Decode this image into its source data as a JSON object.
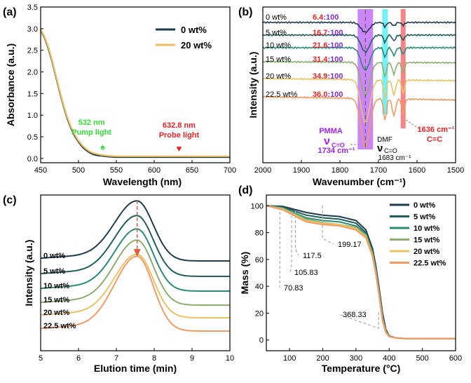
{
  "chart_data": [
    {
      "panel": "(a)",
      "type": "line",
      "xlabel": "Wavelength (nm)",
      "ylabel": "Absorbance (a.u.)",
      "xlim": [
        450,
        700
      ],
      "ylim": [
        -0.1,
        3.5
      ],
      "xticks": [
        450,
        500,
        550,
        600,
        650,
        700
      ],
      "yticks": [
        0.0,
        0.5,
        1.0,
        1.5,
        2.0,
        2.5,
        3.0,
        3.5
      ],
      "legend_position": "top-right",
      "colors": {
        "0 wt%": "#1f3b4d",
        "20 wt%": "#f0c060",
        "pump": "#33dd33",
        "probe": "#ee2222"
      },
      "series": [
        {
          "name": "0 wt%",
          "x": [
            450,
            455,
            460,
            465,
            470,
            475,
            480,
            485,
            490,
            495,
            500,
            505,
            510,
            515,
            520,
            525,
            530,
            540,
            550,
            560,
            600,
            650,
            700
          ],
          "y": [
            2.97,
            2.8,
            2.55,
            2.25,
            1.9,
            1.55,
            1.22,
            0.93,
            0.7,
            0.52,
            0.38,
            0.27,
            0.19,
            0.13,
            0.09,
            0.07,
            0.06,
            0.04,
            0.03,
            0.03,
            0.03,
            0.03,
            0.03
          ]
        },
        {
          "name": "20 wt%",
          "x": [
            450,
            455,
            460,
            465,
            470,
            475,
            480,
            485,
            490,
            495,
            500,
            505,
            510,
            515,
            520,
            525,
            530,
            540,
            550,
            560,
            600,
            650,
            700
          ],
          "y": [
            2.99,
            2.82,
            2.58,
            2.28,
            1.93,
            1.58,
            1.25,
            0.96,
            0.73,
            0.55,
            0.41,
            0.3,
            0.22,
            0.16,
            0.12,
            0.1,
            0.08,
            0.06,
            0.05,
            0.05,
            0.05,
            0.05,
            0.05
          ]
        }
      ],
      "annotations": [
        {
          "text": [
            "532 nm",
            "Pump light"
          ],
          "symbol": "♠",
          "x": 532
        },
        {
          "text": [
            "632.8 nm",
            "Probe light"
          ],
          "symbol": "♥",
          "x": 632.8
        }
      ]
    },
    {
      "panel": "(b)",
      "type": "line",
      "xlabel": "Wavenumber (cm⁻¹)",
      "ylabel": "Intensity (a.u.)",
      "xlim": [
        2000,
        1500
      ],
      "xticks": [
        2000,
        1900,
        1800,
        1700,
        1600,
        1500
      ],
      "series": [
        {
          "name": "0 wt%",
          "ratio": "6.4",
          "color": "#1f3b4d"
        },
        {
          "name": "5 wt%",
          "ratio": "16.7",
          "color": "#1f5e5a"
        },
        {
          "name": "10 wt%",
          "ratio": "21.6",
          "color": "#2a8a7a"
        },
        {
          "name": "15 wt%",
          "ratio": "31.4",
          "color": "#8cae6f"
        },
        {
          "name": "20 wt%",
          "ratio": "34.9",
          "color": "#e8c467"
        },
        {
          "name": "22.5 wt%",
          "ratio": "36.0",
          "color": "#f29a64"
        }
      ],
      "ratio_suffix": ":100",
      "bands": [
        {
          "label_lines": [
            "PMMA",
            "ν",
            "C=O",
            "1734 cm⁻¹"
          ],
          "x": 1734,
          "color": "#a020f0"
        },
        {
          "label_lines": [
            "DMF",
            "ν",
            "C=O",
            "1683 cm⁻¹"
          ],
          "x": 1683,
          "color": "#00e5ee"
        },
        {
          "label_lines": [
            "1636 cm⁻¹",
            "C=C"
          ],
          "x": 1636,
          "color": "#ee2222"
        }
      ]
    },
    {
      "panel": "(c)",
      "type": "line",
      "xlabel": "Elution time (min)",
      "ylabel": "Intensity (a.u.)",
      "xlim": [
        5,
        10
      ],
      "xticks": [
        5,
        6,
        7,
        8,
        9,
        10
      ],
      "series": [
        {
          "name": "0 wt%",
          "color": "#1f3b4d"
        },
        {
          "name": "5 wt%",
          "color": "#1f5e5a"
        },
        {
          "name": "10 wt%",
          "color": "#2a8a7a"
        },
        {
          "name": "15 wt%",
          "color": "#8cae6f"
        },
        {
          "name": "20 wt%",
          "color": "#e8c467"
        },
        {
          "name": "22.5 wt%",
          "color": "#f29a64"
        }
      ],
      "peak_x": 7.55
    },
    {
      "panel": "(d)",
      "type": "line",
      "xlabel": "Temperature (°C)",
      "ylabel": "Mass (%)",
      "xlim": [
        30,
        600
      ],
      "ylim": [
        -8,
        108
      ],
      "xticks": [
        100,
        200,
        300,
        400,
        500,
        600
      ],
      "yticks": [
        0,
        20,
        40,
        60,
        80,
        100
      ],
      "legend_position": "top-right",
      "series": [
        {
          "name": "0 wt%",
          "color": "#1f3b4d",
          "x": [
            30,
            80,
            150,
            200,
            250,
            300,
            330,
            350,
            360,
            370,
            380,
            390,
            400,
            420,
            450,
            600
          ],
          "y": [
            100,
            99.5,
            95,
            93,
            92,
            89,
            82,
            68,
            55,
            38,
            20,
            8,
            3,
            1.5,
            1,
            1
          ]
        },
        {
          "name": "5 wt%",
          "color": "#1f5e5a",
          "x": [
            30,
            80,
            150,
            200,
            250,
            300,
            330,
            350,
            360,
            370,
            380,
            390,
            400,
            420,
            450,
            600
          ],
          "y": [
            100,
            99,
            93,
            91,
            90,
            87,
            80,
            66,
            53,
            36,
            18,
            7,
            3,
            1.5,
            1,
            1
          ]
        },
        {
          "name": "10 wt%",
          "color": "#2a8a7a",
          "x": [
            30,
            80,
            150,
            200,
            250,
            300,
            330,
            350,
            360,
            370,
            380,
            390,
            400,
            420,
            450,
            600
          ],
          "y": [
            100,
            98.5,
            91,
            89,
            88,
            85,
            79,
            65,
            52,
            35,
            17,
            7,
            3,
            1.5,
            1,
            1
          ]
        },
        {
          "name": "15 wt%",
          "color": "#8cae6f",
          "x": [
            30,
            80,
            150,
            200,
            250,
            300,
            330,
            350,
            360,
            370,
            380,
            390,
            400,
            420,
            450,
            600
          ],
          "y": [
            100,
            98,
            90,
            87.5,
            86,
            84,
            78,
            64,
            51,
            34,
            16,
            6,
            2.5,
            1.5,
            1,
            1
          ]
        },
        {
          "name": "20 wt%",
          "color": "#e8c467",
          "x": [
            30,
            80,
            150,
            200,
            250,
            300,
            330,
            350,
            360,
            370,
            380,
            390,
            400,
            420,
            450,
            600
          ],
          "y": [
            100,
            97.5,
            89,
            87,
            86,
            83,
            77,
            63,
            50,
            33,
            15,
            6,
            2.5,
            1.5,
            1,
            1
          ]
        },
        {
          "name": "22.5 wt%",
          "color": "#f29a64",
          "x": [
            30,
            80,
            150,
            200,
            250,
            300,
            330,
            350,
            360,
            370,
            380,
            390,
            400,
            420,
            450,
            600
          ],
          "y": [
            100,
            97,
            88,
            86,
            85,
            82,
            76,
            62,
            49,
            32,
            14,
            5.5,
            2.5,
            1.5,
            1,
            1
          ]
        }
      ],
      "annotations": [
        "70.83",
        "105.83",
        "117.5",
        "199.17",
        "368.33"
      ]
    }
  ]
}
